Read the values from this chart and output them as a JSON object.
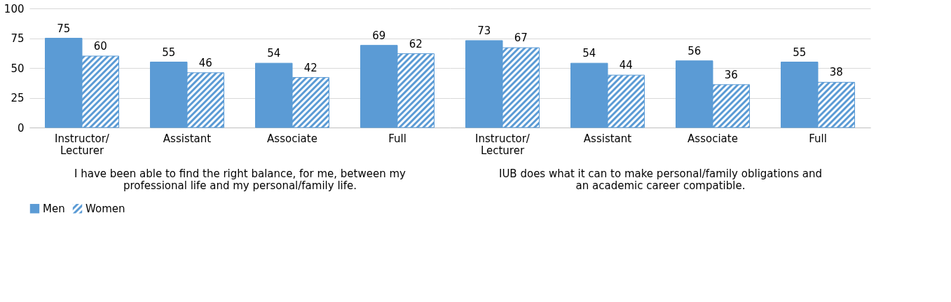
{
  "chart_data": [
    {
      "type": "bar",
      "categories": [
        "Instructor/ Lecturer",
        "Assistant",
        "Associate",
        "Full"
      ],
      "xlabel": "I have been able to find the right balance, for me, between my professional life and my personal/family life.",
      "ylim": [
        0,
        100
      ],
      "yticks": [
        0,
        25,
        50,
        75,
        100
      ],
      "grid": "y",
      "data_labels": true,
      "legend": "bottom",
      "series": [
        {
          "name": "Men",
          "color": "#5b9bd5",
          "values": [
            75,
            55,
            54,
            69
          ]
        },
        {
          "name": "Women",
          "color": "#5b9bd5",
          "values": [
            60,
            46,
            42,
            62
          ]
        }
      ]
    },
    {
      "type": "bar",
      "categories": [
        "Instructor/ Lecturer",
        "Assistant",
        "Associate",
        "Full"
      ],
      "xlabel": "IUB does what it can to make personal/family obligations and an academic career compatible.",
      "ylim": [
        0,
        100
      ],
      "yticks": [
        0,
        25,
        50,
        75,
        100
      ],
      "grid": "y",
      "data_labels": true,
      "tick_labels": "x",
      "series": [
        {
          "name": "Men",
          "color": "#5b9bd5",
          "values": [
            73,
            54,
            56,
            55
          ]
        },
        {
          "name": "Women",
          "color": "#5b9bd5",
          "values": [
            67,
            44,
            36,
            38
          ]
        }
      ]
    }
  ]
}
